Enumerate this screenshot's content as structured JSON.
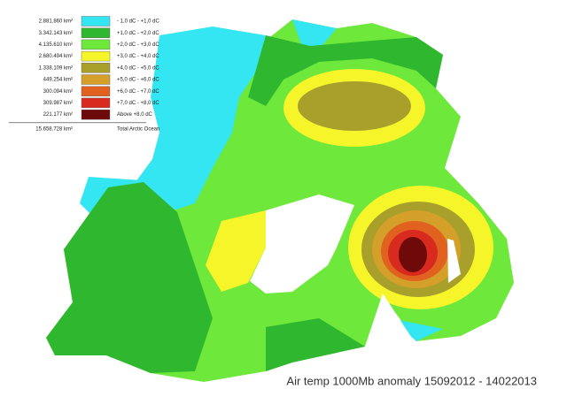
{
  "legend": {
    "items": [
      {
        "area": "2.881.860 km²",
        "range": "- 1,0 dC - +1,0 dC",
        "color": "#33e6f2"
      },
      {
        "area": "3.342.143 km²",
        "range": "+1,0 dC - +2,0 dC",
        "color": "#2fb82f"
      },
      {
        "area": "4.135.610 km²",
        "range": "+2,0 dC - +3,0 dC",
        "color": "#6ee83a"
      },
      {
        "area": "2.680.494 km²",
        "range": "+3,0 dC - +4,0 dC",
        "color": "#f5f52a"
      },
      {
        "area": "1.338.109 km²",
        "range": "+4,0 dC - +5,0 dC",
        "color": "#a8a02a"
      },
      {
        "area": "449.254 km²",
        "range": "+5,0 dC - +6,0 dC",
        "color": "#d4a02a"
      },
      {
        "area": "300.094 km²",
        "range": "+6,0 dC - +7,0 dC",
        "color": "#e0621e"
      },
      {
        "area": "309.987 km²",
        "range": "+7,0 dC - +8,0 dC",
        "color": "#d82a1e"
      },
      {
        "area": "221.177 km²",
        "range": "Above +8,0 dC",
        "color": "#6e0a0a"
      }
    ],
    "total": {
      "area": "15.658.728 km²",
      "label": "Total Arctic Ocean"
    }
  },
  "caption": "Air temp 1000Mb anomaly 15092012 - 14022013"
}
